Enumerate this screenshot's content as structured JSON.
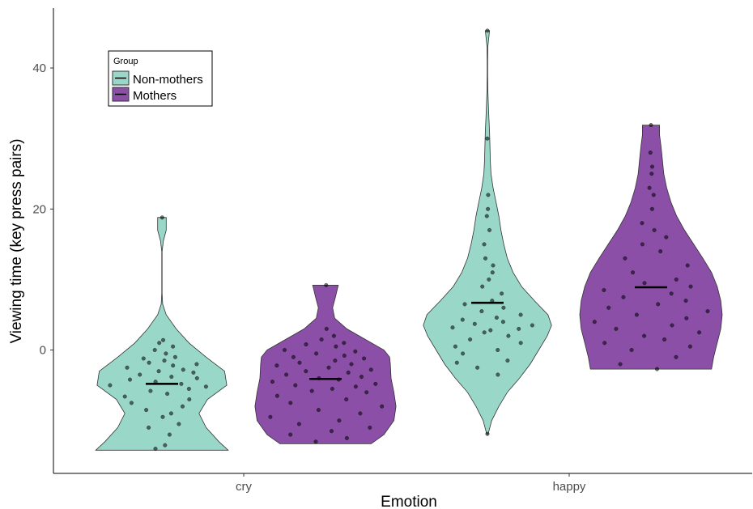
{
  "chart_data": {
    "type": "violin",
    "xlabel": "Emotion",
    "ylabel": "Viewing time (key press pairs)",
    "categories": [
      "cry",
      "happy"
    ],
    "y_ticks": [
      0,
      20,
      40
    ],
    "ylim": [
      -17.5,
      48.5
    ],
    "grid": false,
    "legend": {
      "title": "Group",
      "position": "top-left"
    },
    "colors": {
      "Non-mothers": "#99d8c9",
      "Mothers": "#8b4fa8",
      "outline": "#333333",
      "median": "#000000"
    },
    "series": [
      {
        "name": "Non-mothers",
        "groups": [
          {
            "category": "cry",
            "range": [
              -14.2,
              18.8
            ],
            "median": -4.8,
            "density": [
              [
                -14.2,
                0.93
              ],
              [
                -13,
                0.8
              ],
              [
                -11,
                0.62
              ],
              [
                -9,
                0.52
              ],
              [
                -7,
                0.64
              ],
              [
                -5,
                0.91
              ],
              [
                -3,
                0.88
              ],
              [
                -1,
                0.62
              ],
              [
                1,
                0.38
              ],
              [
                3,
                0.2
              ],
              [
                5,
                0.06
              ],
              [
                6.5,
                0.01
              ],
              [
                8,
                0.002
              ],
              [
                11,
                0.002
              ],
              [
                14,
                0.002
              ],
              [
                15.5,
                0.02
              ],
              [
                17,
                0.06
              ],
              [
                18.8,
                0.06
              ]
            ],
            "points": [
              [
                -14,
                -0.1
              ],
              [
                -13.5,
                0.05
              ],
              [
                -12,
                0.15
              ],
              [
                -11,
                -0.3
              ],
              [
                -10.5,
                0.4
              ],
              [
                -9.5,
                0.02
              ],
              [
                -9,
                0.25
              ],
              [
                -8.5,
                -0.4
              ],
              [
                -8,
                0.5
              ],
              [
                -7.5,
                -0.7
              ],
              [
                -7,
                0.6
              ],
              [
                -6.6,
                -0.75
              ],
              [
                -6.2,
                0.1
              ],
              [
                -5.8,
                -0.2
              ],
              [
                -5.5,
                0.45
              ],
              [
                -5.2,
                0.7
              ],
              [
                -5,
                -0.8
              ],
              [
                -4.8,
                0.3
              ],
              [
                -4.5,
                -0.1
              ],
              [
                -4.2,
                -0.5
              ],
              [
                -4,
                0.55
              ],
              [
                -3.8,
                0.15
              ],
              [
                -3.5,
                -0.35
              ],
              [
                -3.2,
                0.5
              ],
              [
                -3,
                -0.05
              ],
              [
                -2.8,
                0.35
              ],
              [
                -2.5,
                -0.6
              ],
              [
                -2.2,
                0.2
              ],
              [
                -2,
                0.65
              ],
              [
                -1.8,
                -0.25
              ],
              [
                -1.5,
                0.05
              ],
              [
                -1.2,
                -0.4
              ],
              [
                -1,
                0.3
              ],
              [
                -0.5,
                0.1
              ],
              [
                0,
                -0.2
              ],
              [
                0.5,
                0.35
              ],
              [
                1,
                -0.1
              ],
              [
                1.4,
                0.05
              ],
              [
                18.8,
                0.05
              ]
            ]
          },
          {
            "category": "happy",
            "range": [
              -11.9,
              45.3
            ],
            "median": 6.7,
            "density": [
              [
                -11.9,
                0.01
              ],
              [
                -10,
                0.06
              ],
              [
                -8,
                0.16
              ],
              [
                -6,
                0.28
              ],
              [
                -4,
                0.45
              ],
              [
                -2,
                0.6
              ],
              [
                0,
                0.72
              ],
              [
                2,
                0.84
              ],
              [
                3.5,
                0.9
              ],
              [
                5,
                0.85
              ],
              [
                7,
                0.66
              ],
              [
                9,
                0.48
              ],
              [
                11,
                0.36
              ],
              [
                13,
                0.28
              ],
              [
                15,
                0.23
              ],
              [
                17,
                0.19
              ],
              [
                19,
                0.16
              ],
              [
                21,
                0.12
              ],
              [
                23,
                0.08
              ],
              [
                25,
                0.05
              ],
              [
                27,
                0.04
              ],
              [
                29,
                0.035
              ],
              [
                31,
                0.03
              ],
              [
                33,
                0.02
              ],
              [
                35,
                0.012
              ],
              [
                37,
                0.006
              ],
              [
                39,
                0.003
              ],
              [
                41,
                0.003
              ],
              [
                43,
                0.006
              ],
              [
                45.3,
                0.03
              ]
            ],
            "points": [
              [
                -11.9,
                0
              ],
              [
                -3.5,
                0.3
              ],
              [
                -2.5,
                -0.25
              ],
              [
                -1.8,
                -0.7
              ],
              [
                -1.5,
                0.45
              ],
              [
                -0.5,
                -0.5
              ],
              [
                0,
                0.2
              ],
              [
                0.5,
                -0.6
              ],
              [
                1,
                0.6
              ],
              [
                1.5,
                -0.3
              ],
              [
                2,
                0.35
              ],
              [
                2.5,
                -0.05
              ],
              [
                2.8,
                0.05
              ],
              [
                3,
                0.5
              ],
              [
                3.2,
                -0.55
              ],
              [
                3.5,
                0.7
              ],
              [
                3.7,
                -0.2
              ],
              [
                4,
                0.25
              ],
              [
                4.3,
                -0.4
              ],
              [
                4.6,
                0.15
              ],
              [
                5,
                0.55
              ],
              [
                5.5,
                -0.1
              ],
              [
                6,
                0.3
              ],
              [
                6.5,
                -0.45
              ],
              [
                7,
                0.1
              ],
              [
                8,
                0.35
              ],
              [
                9,
                -0.15
              ],
              [
                10,
                0.05
              ],
              [
                11,
                0.2
              ],
              [
                12,
                0.25
              ],
              [
                13,
                -0.1
              ],
              [
                15,
                -0.2
              ],
              [
                17,
                0.15
              ],
              [
                19,
                -0.05
              ],
              [
                20,
                0.05
              ],
              [
                22,
                0.1
              ],
              [
                30,
                -0.05
              ],
              [
                45.3,
                0
              ]
            ]
          }
        ]
      },
      {
        "name": "Mothers",
        "groups": [
          {
            "category": "cry",
            "range": [
              -13.3,
              9.2
            ],
            "median": -4.1,
            "density": [
              [
                -13.3,
                0.64
              ],
              [
                -12,
                0.82
              ],
              [
                -10,
                0.96
              ],
              [
                -8,
                0.99
              ],
              [
                -6,
                0.96
              ],
              [
                -4,
                0.92
              ],
              [
                -2,
                0.91
              ],
              [
                -1,
                0.9
              ],
              [
                0,
                0.82
              ],
              [
                1.5,
                0.56
              ],
              [
                3,
                0.3
              ],
              [
                4.5,
                0.13
              ],
              [
                6,
                0.1
              ],
              [
                7.5,
                0.14
              ],
              [
                9.2,
                0.18
              ]
            ],
            "points": [
              [
                -13,
                -0.2
              ],
              [
                -12.5,
                0.4
              ],
              [
                -12,
                -0.6
              ],
              [
                -11.5,
                0.1
              ],
              [
                -11,
                0.7
              ],
              [
                -10.5,
                -0.4
              ],
              [
                -10,
                0.2
              ],
              [
                -9.5,
                -0.8
              ],
              [
                -9,
                0.5
              ],
              [
                -8.5,
                -0.1
              ],
              [
                -8,
                0.8
              ],
              [
                -7.5,
                -0.5
              ],
              [
                -7,
                0.3
              ],
              [
                -6.5,
                -0.7
              ],
              [
                -6,
                0.6
              ],
              [
                -5.8,
                -0.2
              ],
              [
                -5.5,
                0.1
              ],
              [
                -5.2,
                0.45
              ],
              [
                -5,
                -0.45
              ],
              [
                -4.8,
                0.75
              ],
              [
                -4.5,
                -0.8
              ],
              [
                -4.2,
                0.2
              ],
              [
                -4,
                -0.1
              ],
              [
                -3.8,
                0.55
              ],
              [
                -3.5,
                -0.6
              ],
              [
                -3.2,
                0.35
              ],
              [
                -3,
                -0.3
              ],
              [
                -2.8,
                0.7
              ],
              [
                -2.5,
                0.05
              ],
              [
                -2.2,
                -0.75
              ],
              [
                -2,
                0.4
              ],
              [
                -1.8,
                -0.4
              ],
              [
                -1.5,
                0.15
              ],
              [
                -1.2,
                0.6
              ],
              [
                -1,
                -0.5
              ],
              [
                -0.8,
                0.3
              ],
              [
                -0.5,
                -0.15
              ],
              [
                -0.2,
                0.5
              ],
              [
                0,
                -0.7
              ],
              [
                0.5,
                0.2
              ],
              [
                0.8,
                -0.4
              ],
              [
                1,
                0.4
              ],
              [
                1.5,
                -0.1
              ],
              [
                2,
                0.25
              ],
              [
                3,
                0.05
              ],
              [
                9.2,
                0.05
              ]
            ]
          },
          {
            "category": "happy",
            "range": [
              -2.7,
              31.9
            ],
            "median": 8.9,
            "density": [
              [
                -2.7,
                0.85
              ],
              [
                -1,
                0.88
              ],
              [
                1,
                0.93
              ],
              [
                3,
                0.98
              ],
              [
                5,
                1.0
              ],
              [
                7,
                0.98
              ],
              [
                9,
                0.93
              ],
              [
                11,
                0.85
              ],
              [
                13,
                0.73
              ],
              [
                15,
                0.6
              ],
              [
                17,
                0.47
              ],
              [
                19,
                0.36
              ],
              [
                21,
                0.28
              ],
              [
                23,
                0.22
              ],
              [
                25,
                0.18
              ],
              [
                27,
                0.16
              ],
              [
                29,
                0.14
              ],
              [
                30.5,
                0.12
              ],
              [
                31.9,
                0.12
              ]
            ],
            "points": [
              [
                -2.7,
                0.1
              ],
              [
                -2,
                -0.5
              ],
              [
                -1,
                0.4
              ],
              [
                0,
                -0.3
              ],
              [
                0.5,
                0.6
              ],
              [
                1,
                -0.7
              ],
              [
                1.5,
                0.2
              ],
              [
                2,
                -0.1
              ],
              [
                2.5,
                0.7
              ],
              [
                3,
                -0.5
              ],
              [
                3.5,
                0.3
              ],
              [
                4,
                -0.8
              ],
              [
                4.5,
                0.5
              ],
              [
                5,
                -0.2
              ],
              [
                5.5,
                0.8
              ],
              [
                6,
                -0.6
              ],
              [
                6.5,
                0.1
              ],
              [
                7,
                0.5
              ],
              [
                7.5,
                -0.4
              ],
              [
                8,
                0.3
              ],
              [
                8.5,
                -0.7
              ],
              [
                9,
                0.6
              ],
              [
                9.5,
                -0.1
              ],
              [
                10,
                0.4
              ],
              [
                11,
                -0.3
              ],
              [
                12,
                0.65
              ],
              [
                13,
                -0.5
              ],
              [
                14,
                0.2
              ],
              [
                15,
                -0.2
              ],
              [
                16,
                0.4
              ],
              [
                17,
                0.1
              ],
              [
                18,
                -0.3
              ],
              [
                20,
                0.05
              ],
              [
                22,
                0.15
              ],
              [
                23,
                -0.1
              ],
              [
                25,
                0.05
              ],
              [
                26,
                0.1
              ],
              [
                28,
                -0.05
              ],
              [
                31.9,
                0
              ]
            ]
          }
        ]
      }
    ]
  }
}
